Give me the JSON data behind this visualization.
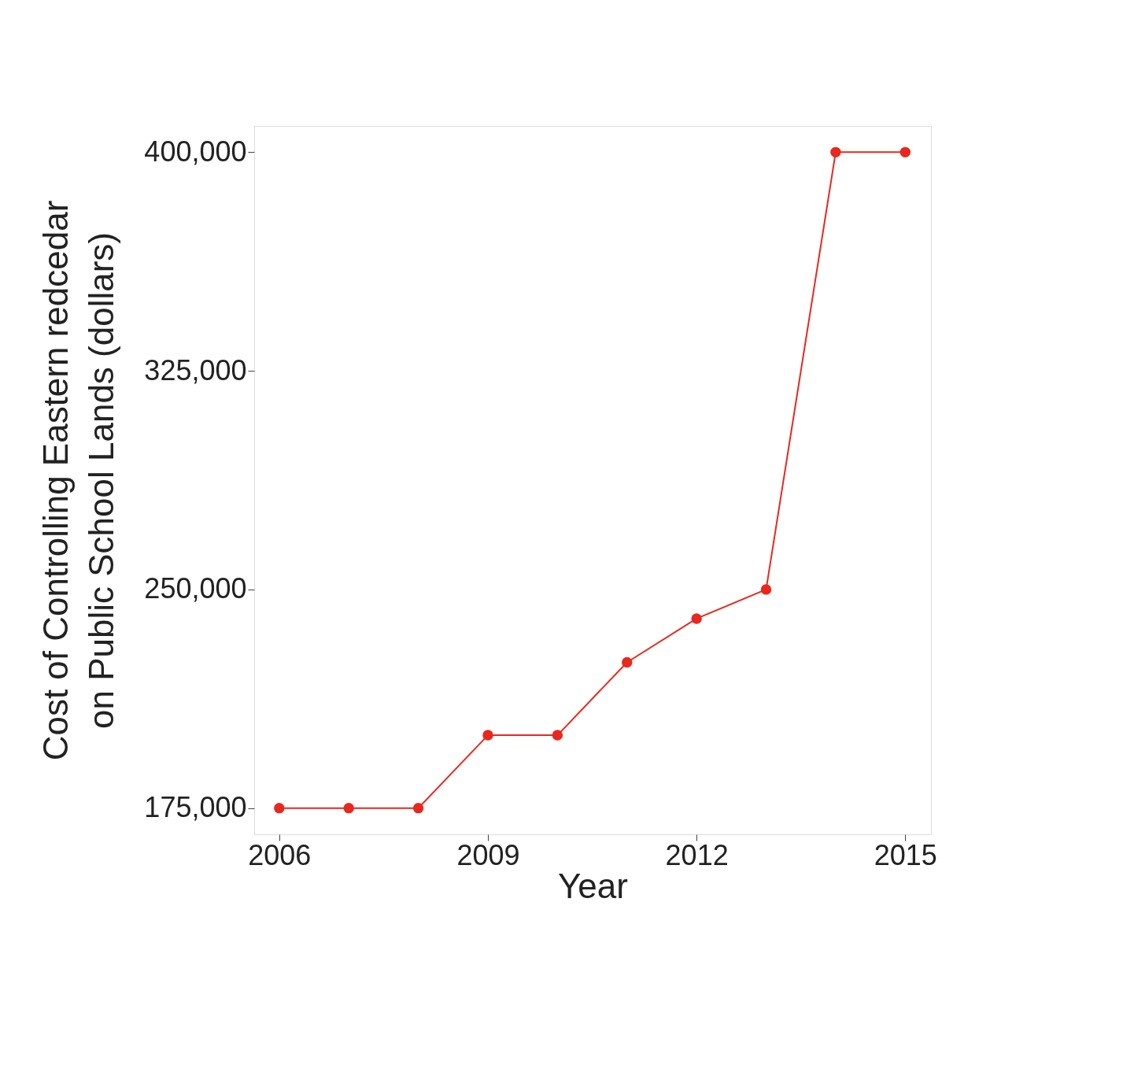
{
  "chart_data": {
    "type": "line",
    "xlabel": "Year",
    "ylabel": "Cost of Controlling Eastern redcedar\non Public School Lands (dollars)",
    "x": [
      2006,
      2007,
      2008,
      2009,
      2010,
      2011,
      2012,
      2013,
      2014,
      2015
    ],
    "series": [
      {
        "color": "#e8281e",
        "values": [
          175000,
          175000,
          175000,
          200000,
          200000,
          225000,
          240000,
          250000,
          400000,
          400000
        ]
      }
    ],
    "xlim": [
      2005.64,
      2015.37
    ],
    "xticks": [
      2006,
      2009,
      2012,
      2015
    ],
    "ylim": [
      166000,
      409000
    ],
    "yticks": [
      {
        "value": 175000,
        "label": "175,000"
      },
      {
        "value": 250000,
        "label": "250,000"
      },
      {
        "value": 325000,
        "label": "325,000"
      },
      {
        "value": 400000,
        "label": "400,000"
      }
    ],
    "marker": "circle",
    "line_style": "solid",
    "grid": false,
    "legend": false
  }
}
